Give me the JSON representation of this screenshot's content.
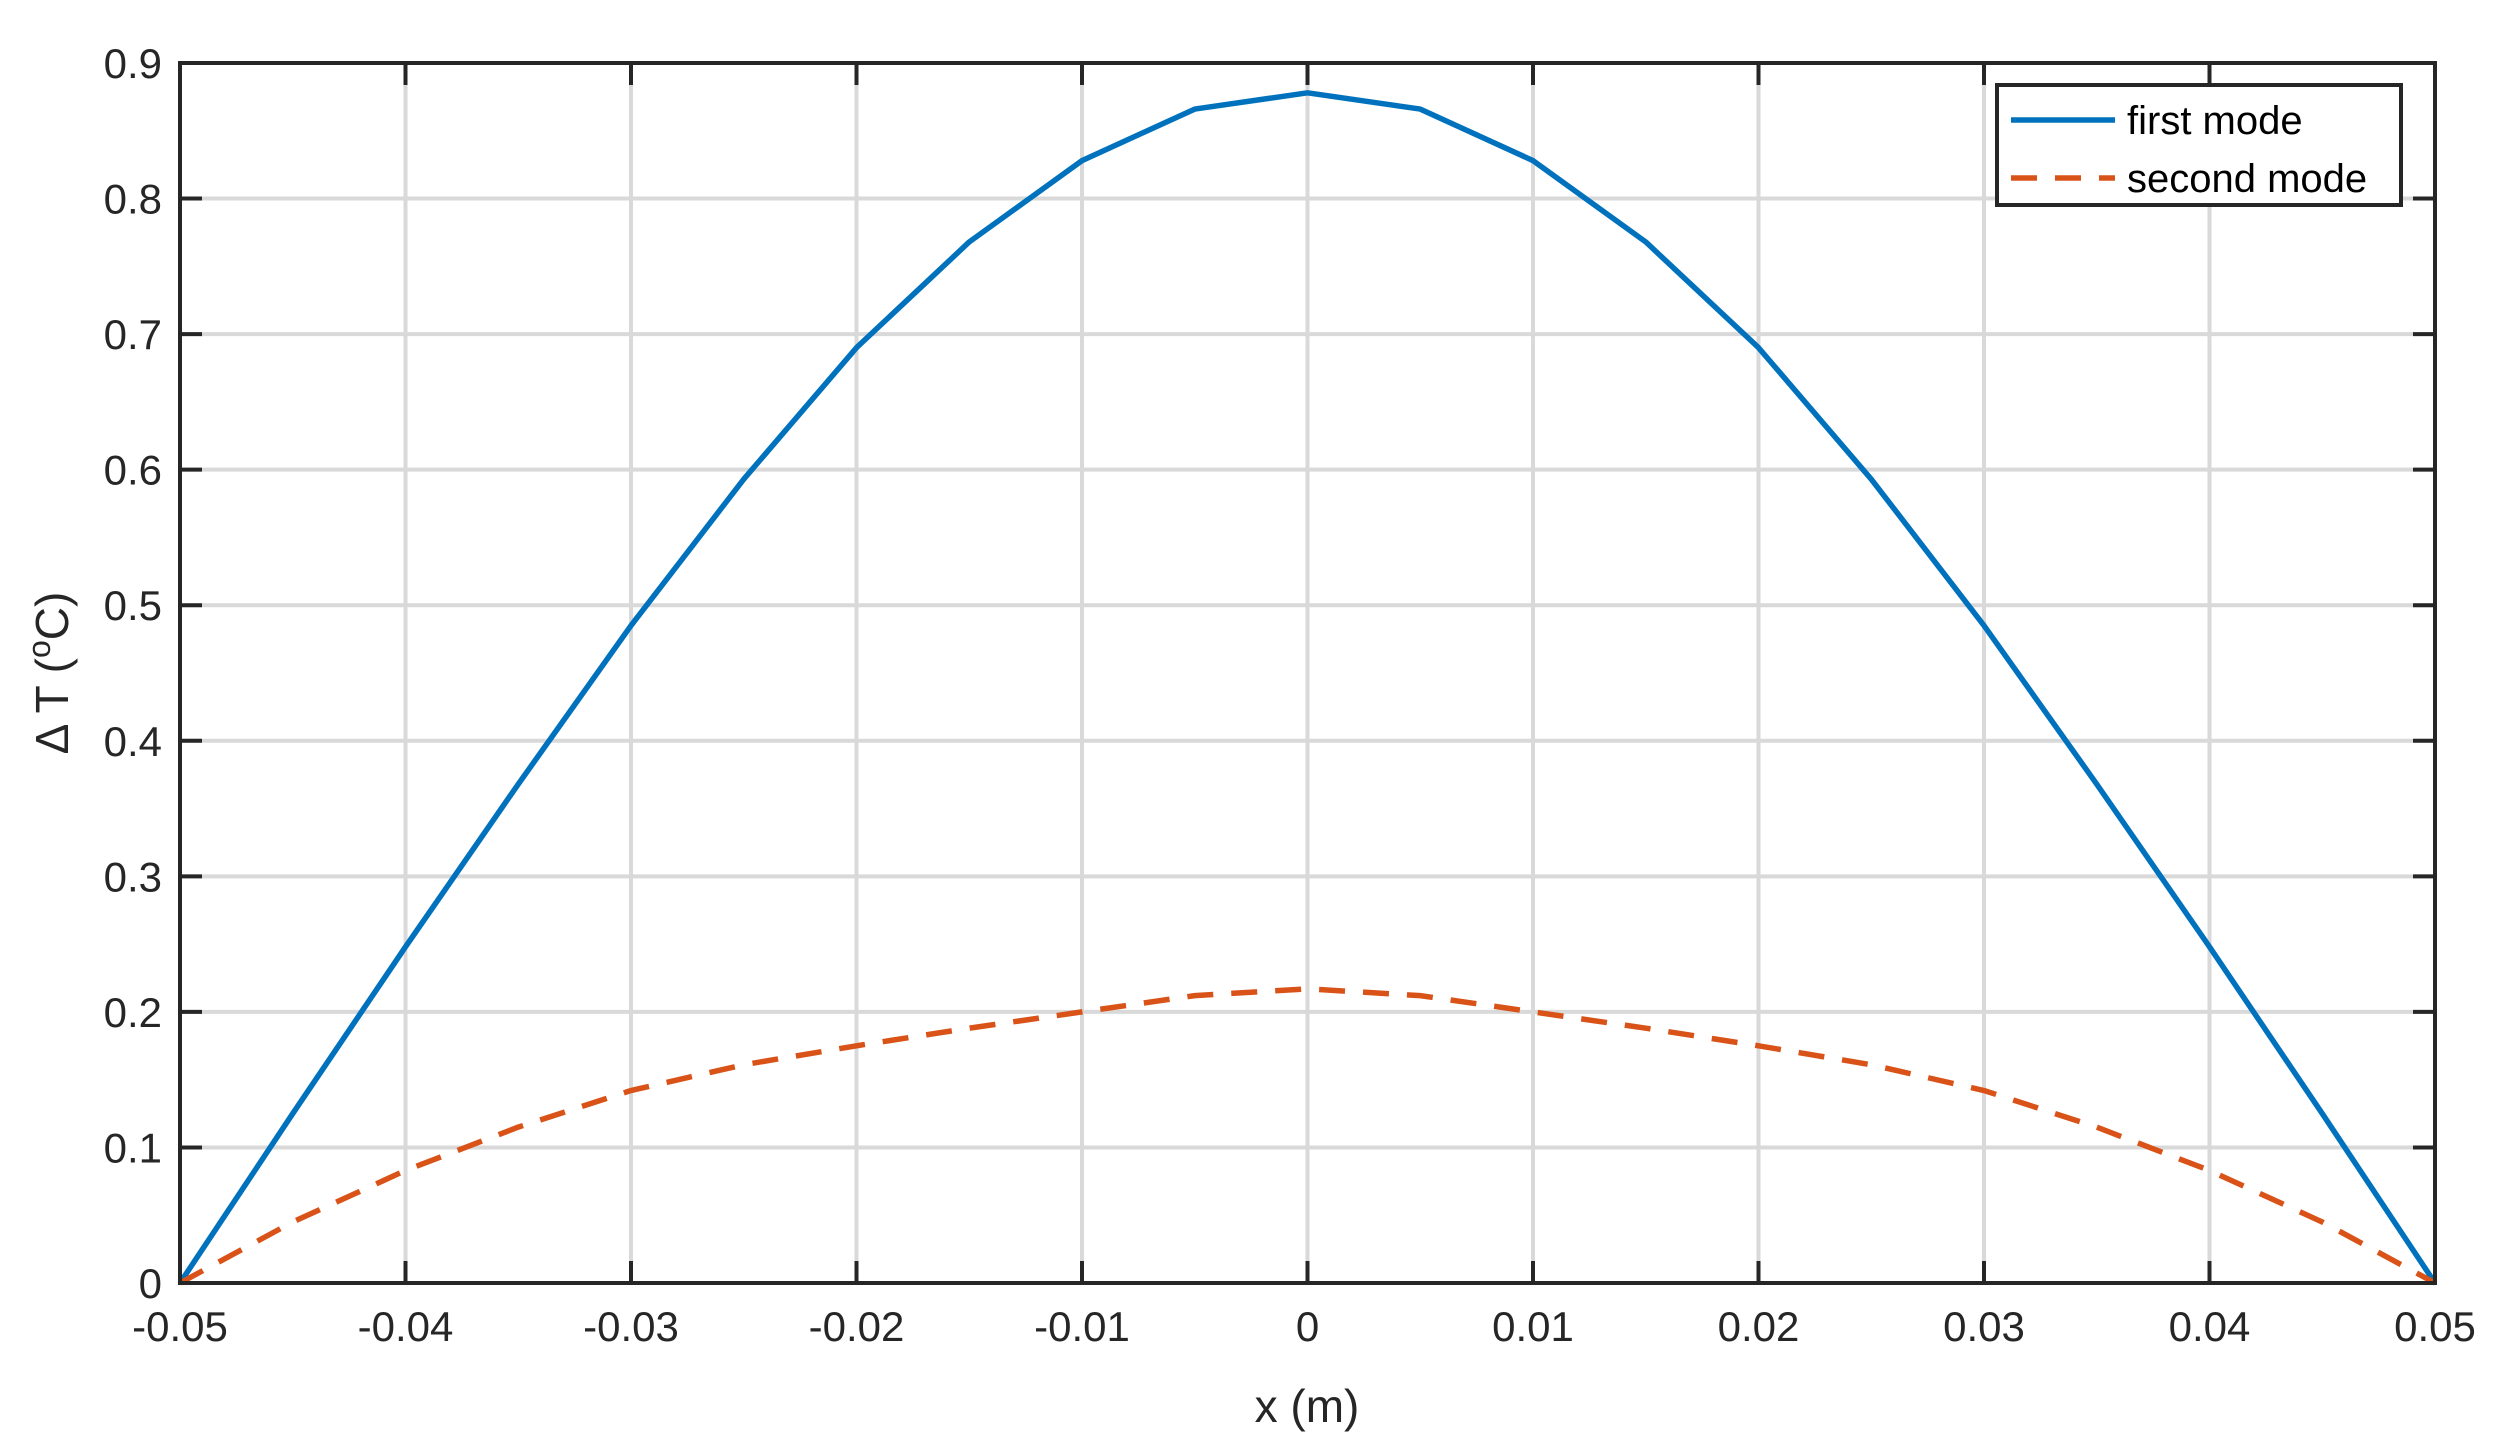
{
  "chart_data": {
    "type": "line",
    "title": "",
    "xlabel": "x (m)",
    "ylabel": {
      "prefix": "Δ T (",
      "superscript": "o",
      "suffix": "C)"
    },
    "xlim": [
      -0.05,
      0.05
    ],
    "ylim": [
      0,
      0.9
    ],
    "xticks": [
      -0.05,
      -0.04,
      -0.03,
      -0.02,
      -0.01,
      0,
      0.01,
      0.02,
      0.03,
      0.04,
      0.05
    ],
    "xtick_labels": [
      "-0.05",
      "-0.04",
      "-0.03",
      "-0.02",
      "-0.01",
      "0",
      "0.01",
      "0.02",
      "0.03",
      "0.04",
      "0.05"
    ],
    "yticks": [
      0,
      0.1,
      0.2,
      0.3,
      0.4,
      0.5,
      0.6,
      0.7,
      0.8,
      0.9
    ],
    "ytick_labels": [
      "0",
      "0.1",
      "0.2",
      "0.3",
      "0.4",
      "0.5",
      "0.6",
      "0.7",
      "0.8",
      "0.9"
    ],
    "grid": true,
    "legend_position": "top-right",
    "x": [
      -0.05,
      -0.045,
      -0.04,
      -0.035,
      -0.03,
      -0.025,
      -0.02,
      -0.015,
      -0.01,
      -0.005,
      0,
      0.005,
      0.01,
      0.015,
      0.02,
      0.025,
      0.03,
      0.035,
      0.04,
      0.045,
      0.05
    ],
    "series": [
      {
        "name": "first mode",
        "color": "#0072BD",
        "style": "solid",
        "values": [
          0,
          0.125,
          0.248,
          0.368,
          0.485,
          0.593,
          0.69,
          0.768,
          0.828,
          0.866,
          0.878,
          0.866,
          0.828,
          0.768,
          0.69,
          0.593,
          0.485,
          0.368,
          0.248,
          0.125,
          0
        ]
      },
      {
        "name": "second mode",
        "color": "#D95319",
        "style": "dashed",
        "values": [
          0,
          0.045,
          0.083,
          0.115,
          0.142,
          0.161,
          0.175,
          0.188,
          0.2,
          0.212,
          0.217,
          0.212,
          0.2,
          0.188,
          0.175,
          0.161,
          0.142,
          0.115,
          0.083,
          0.045,
          0
        ]
      }
    ]
  }
}
